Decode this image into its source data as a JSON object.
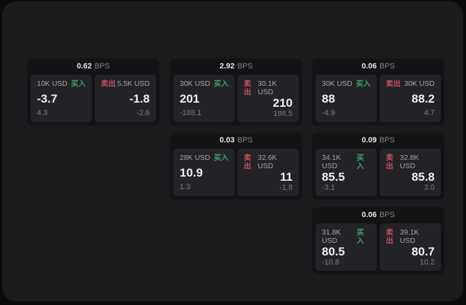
{
  "colors": {
    "buy": "#3fa06a",
    "sell": "#c4515f",
    "panel": "#1b1b1d",
    "card": "#131315",
    "tile": "#232327"
  },
  "labels": {
    "buy": "买入",
    "sell": "卖出",
    "bps": "BPS"
  },
  "cards": [
    {
      "bps": "0.62",
      "buy": {
        "size": "10K USD",
        "price": "-3.7",
        "delta": "4.3"
      },
      "sell": {
        "size": "5.5K USD",
        "price": "-1.8",
        "delta": "-2.6"
      }
    },
    {
      "bps": "2.92",
      "buy": {
        "size": "30K USD",
        "price": "201",
        "delta": "-188.1"
      },
      "sell": {
        "size": "30.1K USD",
        "price": "210",
        "delta": "196.5"
      }
    },
    {
      "bps": "0.06",
      "buy": {
        "size": "30K USD",
        "price": "88",
        "delta": "-4.9"
      },
      "sell": {
        "size": "30K USD",
        "price": "88.2",
        "delta": "4.7"
      }
    },
    {
      "bps": "0.03",
      "buy": {
        "size": "28K USD",
        "price": "10.9",
        "delta": "1.3"
      },
      "sell": {
        "size": "32.6K USD",
        "price": "11",
        "delta": "-1.8"
      }
    },
    {
      "bps": "0.09",
      "buy": {
        "size": "34.1K USD",
        "price": "85.5",
        "delta": "-3.1"
      },
      "sell": {
        "size": "32.8K USD",
        "price": "85.8",
        "delta": "3.0"
      }
    },
    {
      "bps": "0.06",
      "buy": {
        "size": "31.8K USD",
        "price": "80.5",
        "delta": "-10.8"
      },
      "sell": {
        "size": "39.1K USD",
        "price": "80.7",
        "delta": "10.2"
      }
    }
  ]
}
